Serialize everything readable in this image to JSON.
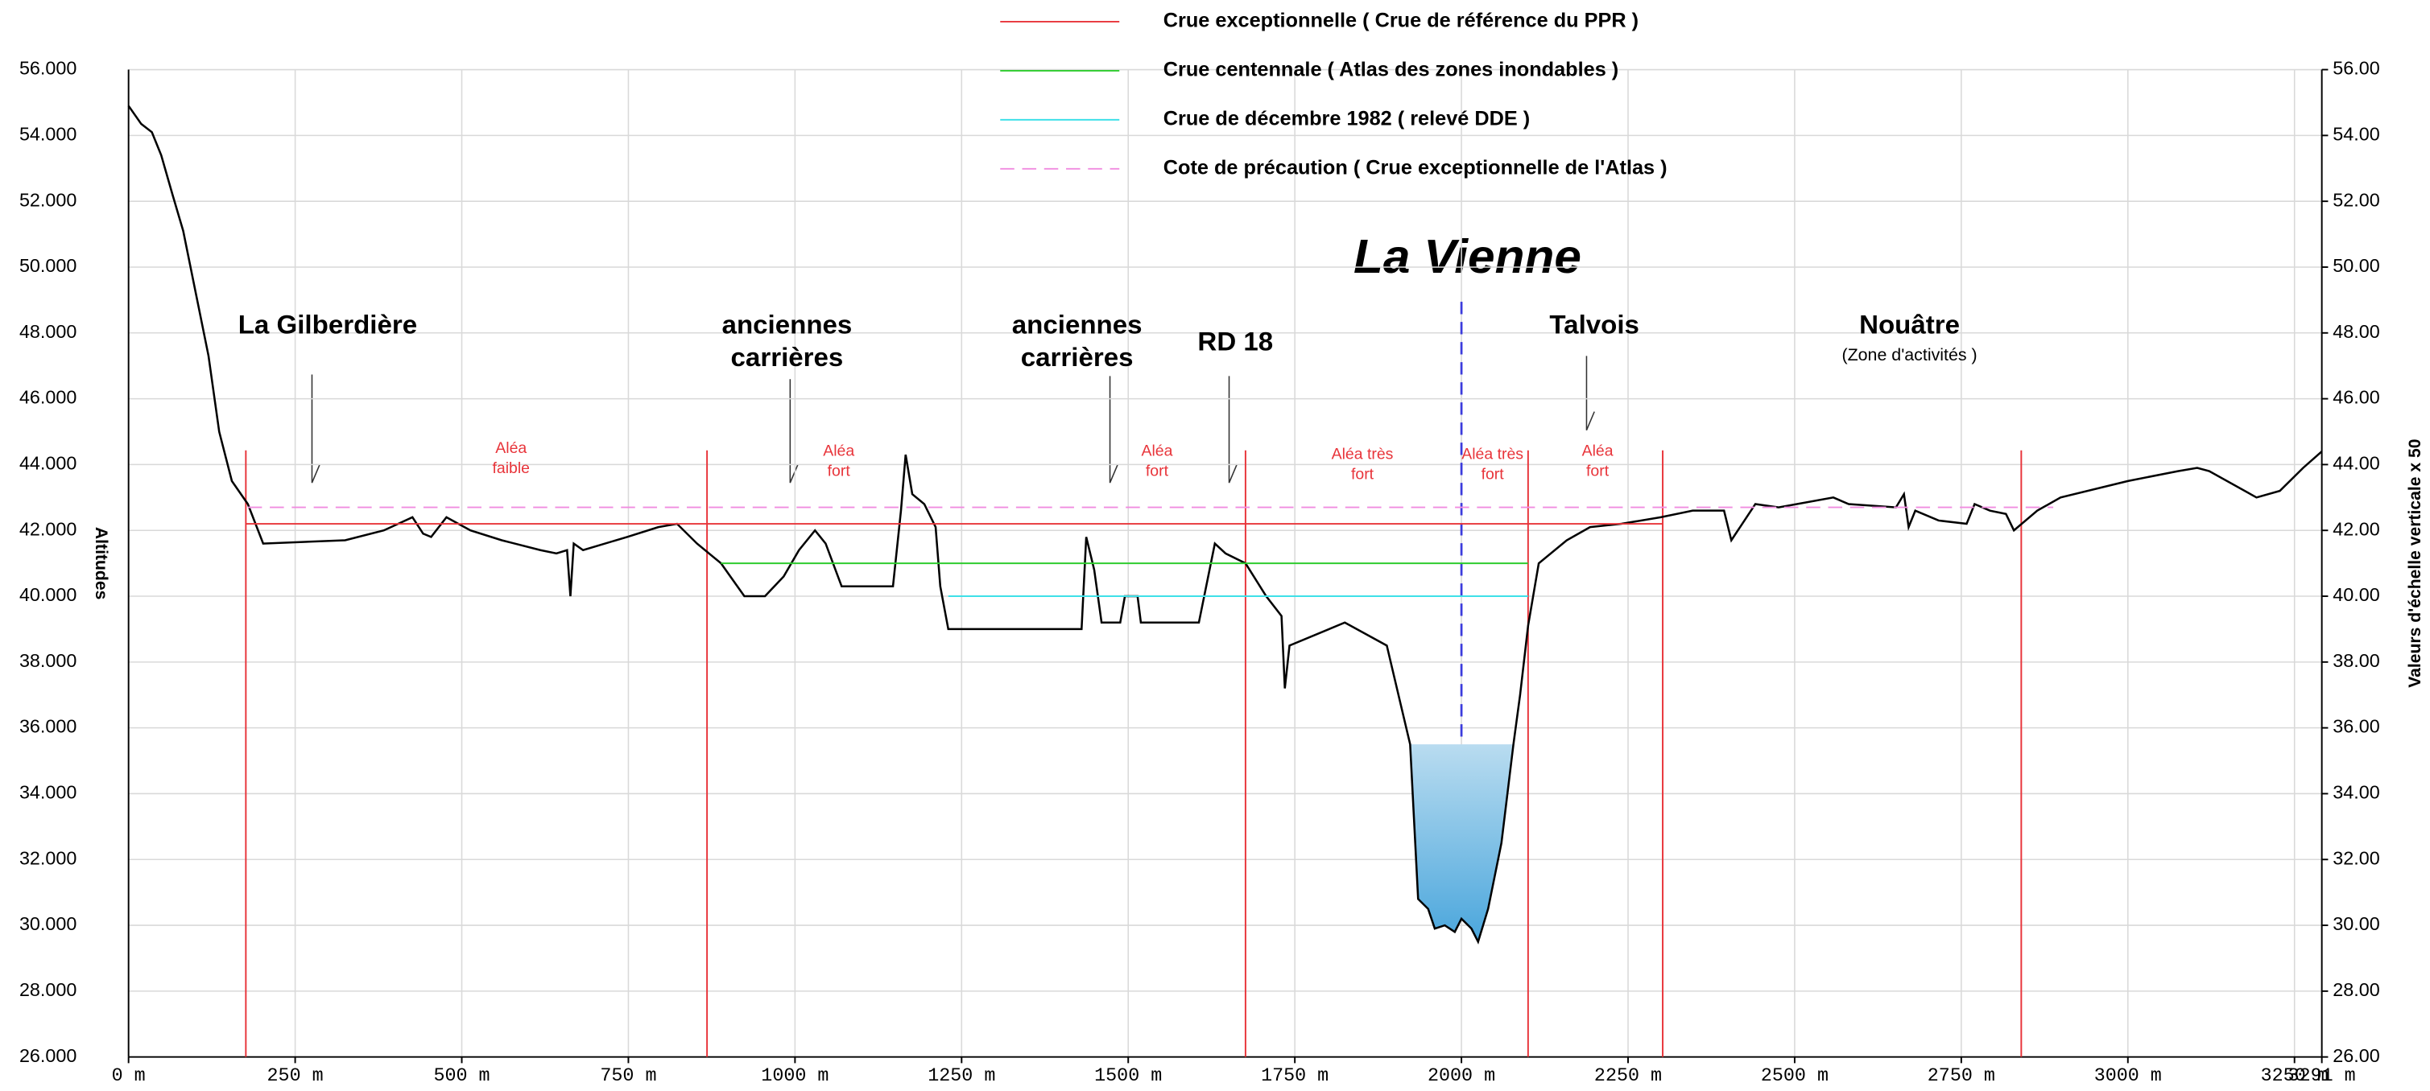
{
  "chart_data": {
    "type": "line",
    "river_label": "La Vienne",
    "xlabel": "",
    "ylabel": "Altitudes",
    "y2label": "Valeurs d'échelle verticale x 50",
    "xlim": [
      0,
      3291
    ],
    "ylim": [
      26,
      56
    ],
    "y2lim": [
      26,
      56
    ],
    "xticks": [
      {
        "value": 0,
        "label": "0 m"
      },
      {
        "value": 250,
        "label": "250 m"
      },
      {
        "value": 500,
        "label": "500 m"
      },
      {
        "value": 750,
        "label": "750 m"
      },
      {
        "value": 1000,
        "label": "1000 m"
      },
      {
        "value": 1250,
        "label": "1250 m"
      },
      {
        "value": 1500,
        "label": "1500 m"
      },
      {
        "value": 1750,
        "label": "1750 m"
      },
      {
        "value": 2000,
        "label": "2000 m"
      },
      {
        "value": 2250,
        "label": "2250 m"
      },
      {
        "value": 2500,
        "label": "2500 m"
      },
      {
        "value": 2750,
        "label": "2750 m"
      },
      {
        "value": 3000,
        "label": "3000 m"
      },
      {
        "value": 3250,
        "label": "3250 m"
      },
      {
        "value": 3291,
        "label": "3291 m"
      }
    ],
    "yticks": [
      {
        "value": 26,
        "label": "26.000"
      },
      {
        "value": 28,
        "label": "28.000"
      },
      {
        "value": 30,
        "label": "30.000"
      },
      {
        "value": 32,
        "label": "32.000"
      },
      {
        "value": 34,
        "label": "34.000"
      },
      {
        "value": 36,
        "label": "36.000"
      },
      {
        "value": 38,
        "label": "38.000"
      },
      {
        "value": 40,
        "label": "40.000"
      },
      {
        "value": 42,
        "label": "42.000"
      },
      {
        "value": 44,
        "label": "44.000"
      },
      {
        "value": 46,
        "label": "46.000"
      },
      {
        "value": 48,
        "label": "48.000"
      },
      {
        "value": 50,
        "label": "50.000"
      },
      {
        "value": 52,
        "label": "52.000"
      },
      {
        "value": 54,
        "label": "54.000"
      },
      {
        "value": 56,
        "label": "56.000"
      }
    ],
    "y2ticks": [
      {
        "value": 26,
        "label": "26.00"
      },
      {
        "value": 28,
        "label": "28.00"
      },
      {
        "value": 30,
        "label": "30.00"
      },
      {
        "value": 32,
        "label": "32.00"
      },
      {
        "value": 34,
        "label": "34.00"
      },
      {
        "value": 36,
        "label": "36.00"
      },
      {
        "value": 38,
        "label": "38.00"
      },
      {
        "value": 40,
        "label": "40.00"
      },
      {
        "value": 42,
        "label": "42.00"
      },
      {
        "value": 44,
        "label": "44.00"
      },
      {
        "value": 46,
        "label": "46.00"
      },
      {
        "value": 48,
        "label": "48.00"
      },
      {
        "value": 50,
        "label": "50.00"
      },
      {
        "value": 52,
        "label": "52.00"
      },
      {
        "value": 54,
        "label": "54.00"
      },
      {
        "value": 56,
        "label": "56.00"
      }
    ],
    "grid": true,
    "series": [
      {
        "color": "#000000",
        "x": [
          0,
          19,
          35,
          49,
          66,
          82,
          101,
          120,
          136,
          155,
          179,
          202,
          325,
          383,
          426,
          442,
          454,
          477,
          513,
          560,
          618,
          642,
          658,
          663,
          668,
          682,
          748,
          795,
          823,
          853,
          889,
          924,
          955,
          983,
          1006,
          1030,
          1046,
          1070,
          1147,
          1159,
          1166,
          1176,
          1194,
          1211,
          1218,
          1230,
          1430,
          1437,
          1449,
          1460,
          1488,
          1495,
          1514,
          1519,
          1606,
          1630,
          1646,
          1676,
          1707,
          1730,
          1735,
          1742,
          1825,
          1888,
          1923,
          1935,
          1950,
          1960,
          1975,
          1990,
          2000,
          2015,
          2025,
          2040,
          2060,
          2078,
          2088,
          2100,
          2116,
          2158,
          2193,
          2240,
          2299,
          2347,
          2394,
          2405,
          2441,
          2476,
          2558,
          2581,
          2652,
          2664,
          2671,
          2681,
          2716,
          2758,
          2770,
          2793,
          2817,
          2829,
          2864,
          2899,
          3000,
          3075,
          3104,
          3122,
          3193,
          3228,
          3263,
          3291
        ],
        "values": [
          54.9,
          54.35,
          54.1,
          53.4,
          52.2,
          51.1,
          49.2,
          47.3,
          45.0,
          43.5,
          42.8,
          41.6,
          41.7,
          42.0,
          42.4,
          41.9,
          41.8,
          42.4,
          42.0,
          41.7,
          41.4,
          41.3,
          41.4,
          40.0,
          41.6,
          41.4,
          41.8,
          42.1,
          42.2,
          41.6,
          41.0,
          40.0,
          40.0,
          40.6,
          41.4,
          42.0,
          41.6,
          40.3,
          40.3,
          42.6,
          44.3,
          43.1,
          42.8,
          42.1,
          40.3,
          39.0,
          39.0,
          41.8,
          40.8,
          39.2,
          39.2,
          40.0,
          40.0,
          39.2,
          39.2,
          41.6,
          41.3,
          41.0,
          40.0,
          39.4,
          37.2,
          38.5,
          39.2,
          38.5,
          35.5,
          30.8,
          30.5,
          29.9,
          30.0,
          29.8,
          30.2,
          29.9,
          29.5,
          30.5,
          32.5,
          35.5,
          37.0,
          39.1,
          41.0,
          41.7,
          42.1,
          42.2,
          42.4,
          42.6,
          42.6,
          41.7,
          42.8,
          42.7,
          43.0,
          42.8,
          42.7,
          43.1,
          42.1,
          42.6,
          42.3,
          42.2,
          42.8,
          42.6,
          42.5,
          42.0,
          42.6,
          43.0,
          43.5,
          43.8,
          43.9,
          43.8,
          43.0,
          43.2,
          43.9,
          44.4
        ]
      },
      {
        "name": "Crue exceptionnelle ( Crue de référence du PPR )",
        "color": "#e8343a",
        "x": [
          176,
          2302
        ],
        "values": [
          42.2,
          42.2
        ]
      },
      {
        "name": "Crue centennale ( Atlas des zones inondables )",
        "color": "#2ecc2e",
        "x": [
          889,
          2100
        ],
        "values": [
          41.0,
          41.0
        ]
      },
      {
        "name": "Crue de décembre 1982 ( relevé DDE )",
        "color": "#3fe0e8",
        "x": [
          1230,
          2100
        ],
        "values": [
          40.0,
          40.0
        ]
      },
      {
        "name": "Cote de précaution ( Crue exceptionnelle de l'Atlas )",
        "color": "#f08ce0",
        "dashed": true,
        "x": [
          179,
          2888
        ],
        "values": [
          42.7,
          42.7
        ]
      }
    ],
    "zone_boundaries": [
      176,
      868,
      1676,
      2100,
      2302,
      2840
    ],
    "river_axis": 2000,
    "water_level": 35.5,
    "place_labels": [
      [
        "La Gilberdière"
      ],
      [
        "anciennes",
        "carrières"
      ],
      [
        "anciennes",
        "carrières"
      ],
      [
        "RD 18"
      ],
      [
        "Talvois"
      ],
      [
        "Nouâtre"
      ]
    ],
    "place_note": "(Zone d'activités )",
    "hazard_labels": [
      [
        "Aléa",
        "faible"
      ],
      [
        "Aléa",
        "fort"
      ],
      [
        "Aléa",
        "fort"
      ],
      [
        "Aléa très",
        "fort"
      ],
      [
        "Aléa très",
        "fort"
      ],
      [
        "Aléa",
        "fort"
      ]
    ]
  }
}
